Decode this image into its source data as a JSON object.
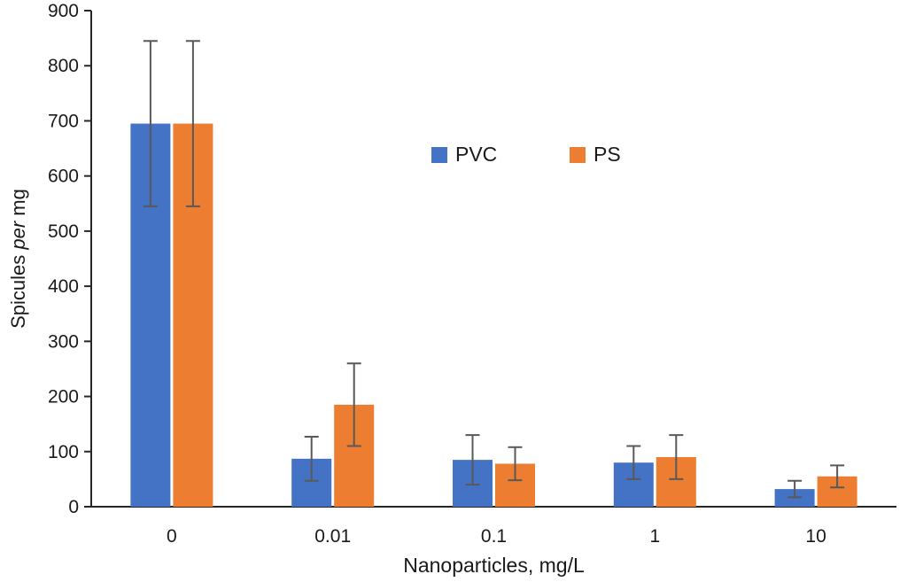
{
  "chart_data": {
    "type": "bar",
    "title": "",
    "categories": [
      "0",
      "0.01",
      "0.1",
      "1",
      "10"
    ],
    "series": [
      {
        "name": "PVC",
        "color": "#4472C4",
        "values": [
          695,
          87,
          85,
          80,
          32
        ],
        "errors": [
          150,
          40,
          45,
          30,
          15
        ]
      },
      {
        "name": "PS",
        "color": "#ED7D31",
        "values": [
          695,
          185,
          78,
          90,
          55
        ],
        "errors": [
          150,
          75,
          30,
          40,
          20
        ]
      }
    ],
    "xlabel": "Nanoparticles, mg/L",
    "ylabel": "Spicules per mg",
    "ylabel_parts": [
      {
        "text": "Spicules ",
        "italic": false
      },
      {
        "text": "per",
        "italic": true
      },
      {
        "text": " mg",
        "italic": false
      }
    ],
    "ylim": [
      0,
      900
    ],
    "yticks": [
      0,
      100,
      200,
      300,
      400,
      500,
      600,
      700,
      800,
      900
    ],
    "grid": false,
    "legend_position": "upper-center",
    "legend_labels": [
      "PVC",
      "PS"
    ],
    "colors": {
      "pvc": "#4472C4",
      "ps": "#ED7D31",
      "error_bar": "#595959",
      "axis": "#262626",
      "text": "#1a1a1a"
    }
  }
}
